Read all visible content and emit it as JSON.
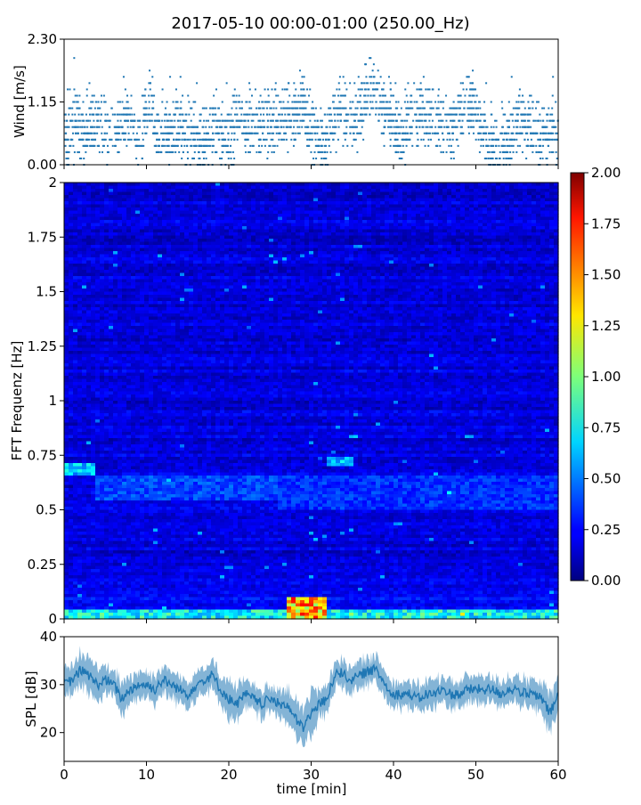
{
  "figure_title": "2017-05-10 00:00-01:00 (250.00_Hz)",
  "colors": {
    "series_blue": "#1f77b4",
    "axis": "#000000",
    "background": "#ffffff"
  },
  "chart_data": [
    {
      "id": "wind",
      "type": "scatter",
      "ylabel": "Wind [m/s]",
      "xlim": [
        0,
        60
      ],
      "ylim": [
        0,
        2.3
      ],
      "yticks": [
        "0.00",
        "1.15",
        "2.30"
      ],
      "y_quantum": 0.115,
      "x": [
        0.5,
        1.0,
        1.8,
        2.6,
        3.4,
        4.6,
        5.8,
        6.4,
        7.2,
        8.0,
        9.0,
        10.4,
        11.2,
        12.8,
        13.6,
        15.0,
        16.2,
        17.4,
        18.6,
        19.8,
        21.2,
        22.4,
        23.6,
        24.6,
        25.6,
        26.8,
        28.0,
        29.0,
        30.2,
        31.4,
        32.6,
        34.2,
        35.4,
        36.8,
        37.8,
        38.6,
        39.6,
        41.0,
        42.2,
        43.4,
        44.6,
        45.8,
        47.0,
        48.0,
        49.0,
        50.0,
        51.2,
        52.6,
        53.8,
        55.0,
        56.4,
        57.6,
        58.8,
        59.8
      ],
      "values": [
        0.5,
        0.85,
        0.6,
        0.55,
        0.8,
        0.75,
        0.6,
        0.6,
        0.85,
        0.8,
        0.55,
        1.2,
        0.6,
        0.55,
        0.75,
        0.6,
        0.4,
        0.5,
        0.7,
        0.4,
        0.9,
        0.7,
        0.8,
        0.7,
        0.9,
        0.8,
        1.0,
        1.15,
        0.6,
        0.4,
        0.75,
        0.9,
        0.75,
        1.3,
        1.4,
        0.95,
        0.85,
        0.5,
        0.9,
        0.85,
        0.85,
        0.65,
        0.75,
        0.85,
        1.1,
        1.0,
        0.55,
        0.3,
        0.5,
        0.85,
        0.75,
        0.45,
        0.55,
        0.6
      ]
    },
    {
      "id": "spectrogram",
      "type": "heatmap",
      "ylabel": "FFT Frequenz [Hz]",
      "xlim": [
        0,
        60
      ],
      "ylim": [
        0,
        2
      ],
      "yticks": [
        "0",
        "0.25",
        "0.5",
        "0.75",
        "1",
        "1.25",
        "1.5",
        "1.75",
        "2"
      ],
      "colorbar": {
        "min": 0,
        "max": 2,
        "colormap": "jet",
        "ticks": [
          "0.00",
          "0.25",
          "0.50",
          "0.75",
          "1.00",
          "1.25",
          "1.50",
          "1.75",
          "2.00"
        ]
      },
      "base_level": 0.18,
      "features": [
        {
          "x0": 0,
          "x1": 60,
          "f0": 0.0,
          "f1": 0.04,
          "level": 0.9
        },
        {
          "x0": 27,
          "x1": 32,
          "f0": 0.0,
          "f1": 0.1,
          "level": 1.6
        },
        {
          "x0": 0,
          "x1": 4,
          "f0": 0.66,
          "f1": 0.72,
          "level": 0.75
        },
        {
          "x0": 32,
          "x1": 35,
          "f0": 0.7,
          "f1": 0.74,
          "level": 0.65
        },
        {
          "x0": 4,
          "x1": 26,
          "f0": 0.55,
          "f1": 0.66,
          "level": 0.45
        },
        {
          "x0": 26,
          "x1": 60,
          "f0": 0.5,
          "f1": 0.65,
          "level": 0.4
        }
      ]
    },
    {
      "id": "spl",
      "type": "area",
      "ylabel": "SPL [dB]",
      "xlabel": "time [min]",
      "xlim": [
        0,
        60
      ],
      "ylim": [
        14,
        40
      ],
      "xticks": [
        "0",
        "10",
        "20",
        "30",
        "40",
        "50",
        "60"
      ],
      "yticks": [
        "20",
        "30",
        "40"
      ],
      "x": [
        0,
        1,
        2,
        3,
        4,
        5,
        6,
        7,
        8,
        9,
        10,
        11,
        12,
        13,
        14,
        15,
        16,
        17,
        18,
        19,
        20,
        21,
        22,
        23,
        24,
        25,
        26,
        27,
        28,
        29,
        30,
        31,
        32,
        33,
        34,
        35,
        36,
        37,
        38,
        39,
        40,
        41,
        42,
        43,
        44,
        45,
        46,
        47,
        48,
        49,
        50,
        51,
        52,
        53,
        54,
        55,
        56,
        57,
        58,
        59,
        60
      ],
      "values": [
        30,
        31,
        33,
        32,
        30,
        31,
        30,
        27,
        29,
        30,
        30,
        29,
        31,
        30,
        29,
        28,
        30,
        31,
        32,
        29,
        27,
        26,
        28,
        27,
        26,
        27,
        26,
        26,
        23,
        21,
        24,
        26,
        27,
        33,
        32,
        31,
        32,
        33,
        33,
        30,
        28,
        28,
        28,
        27,
        28,
        28,
        29,
        28,
        28,
        29,
        29,
        29,
        29,
        28,
        29,
        29,
        28,
        28,
        27,
        24,
        28
      ],
      "spread": [
        3,
        3,
        4,
        4,
        4,
        3,
        3,
        4,
        3,
        3,
        3,
        3,
        3,
        3,
        3,
        3,
        3,
        3,
        3,
        3,
        4,
        4,
        3,
        3,
        3,
        3,
        3,
        4,
        4,
        4,
        5,
        3,
        3,
        3,
        3,
        3,
        3,
        3,
        3,
        3,
        3,
        3,
        3,
        3,
        3,
        3,
        3,
        3,
        3,
        3,
        3,
        3,
        3,
        3,
        3,
        3,
        3,
        3,
        4,
        4,
        4
      ]
    }
  ]
}
